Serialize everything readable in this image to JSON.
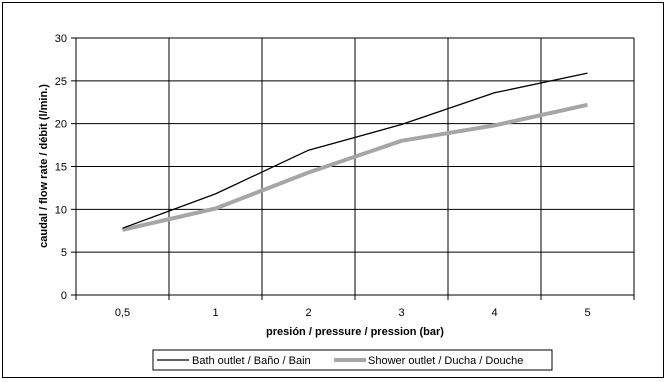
{
  "chart_data": {
    "type": "line",
    "categories": [
      "0,5",
      "1",
      "2",
      "3",
      "4",
      "5"
    ],
    "series": [
      {
        "name": "Bath outlet / Baño / Bain",
        "values": [
          7.8,
          11.8,
          16.9,
          19.9,
          23.6,
          25.9
        ],
        "color": "#000000"
      },
      {
        "name": "Shower outlet / Ducha / Douche",
        "values": [
          7.6,
          10.1,
          14.3,
          18.0,
          19.8,
          22.2
        ],
        "color": "#a6a6a6"
      }
    ],
    "xlabel": "presión / pressure / pression (bar)",
    "ylabel": "caudal / flow rate / débit (l/min.)",
    "ylim": [
      0,
      30
    ],
    "yticks": [
      "0",
      "5",
      "10",
      "15",
      "20",
      "25",
      "30"
    ],
    "grid": true,
    "legend": "bottom"
  }
}
